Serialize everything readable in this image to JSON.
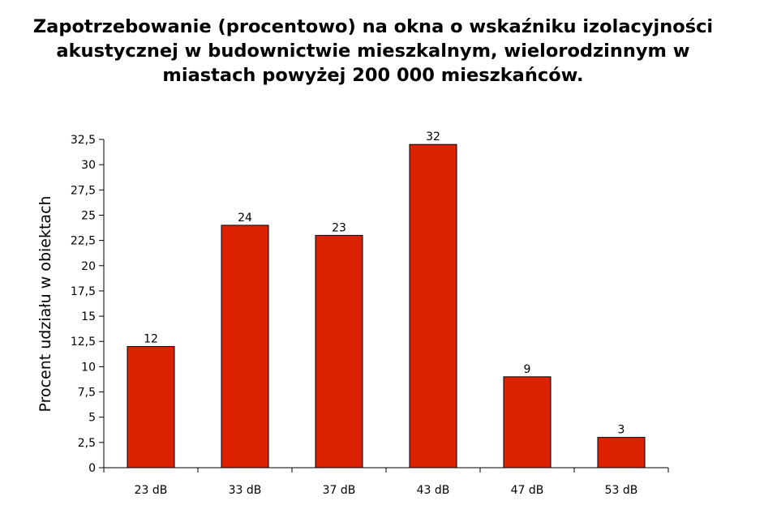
{
  "chart_data": {
    "type": "bar",
    "title_lines": [
      "Zapotrzebowanie (procentowo) na okna o wskaźniku izolacyjności",
      "akustycznej w budownictwie mieszkalnym, wielorodzinnym w",
      "miastach powyżej 200 000 mieszkańców."
    ],
    "xlabel": "",
    "ylabel": "Procent udziału w obiektach",
    "categories": [
      "23 dB",
      "33 dB",
      "37 dB",
      "43 dB",
      "47 dB",
      "53 dB"
    ],
    "values": [
      12,
      24,
      23,
      32,
      9,
      3
    ],
    "data_labels": [
      "12",
      "24",
      "23",
      "32",
      "9",
      "3"
    ],
    "ylim": [
      0,
      32.5
    ],
    "yticks": [
      0,
      2.5,
      5,
      7.5,
      10,
      12.5,
      15,
      17.5,
      20,
      22.5,
      25,
      27.5,
      30,
      32.5
    ],
    "ytick_labels": [
      "0",
      "2,5",
      "5",
      "7,5",
      "10",
      "12,5",
      "15",
      "17,5",
      "20",
      "22,5",
      "25",
      "27,5",
      "30",
      "32,5"
    ],
    "grid": false,
    "legend": "none",
    "bar_color": "#dd2200"
  }
}
